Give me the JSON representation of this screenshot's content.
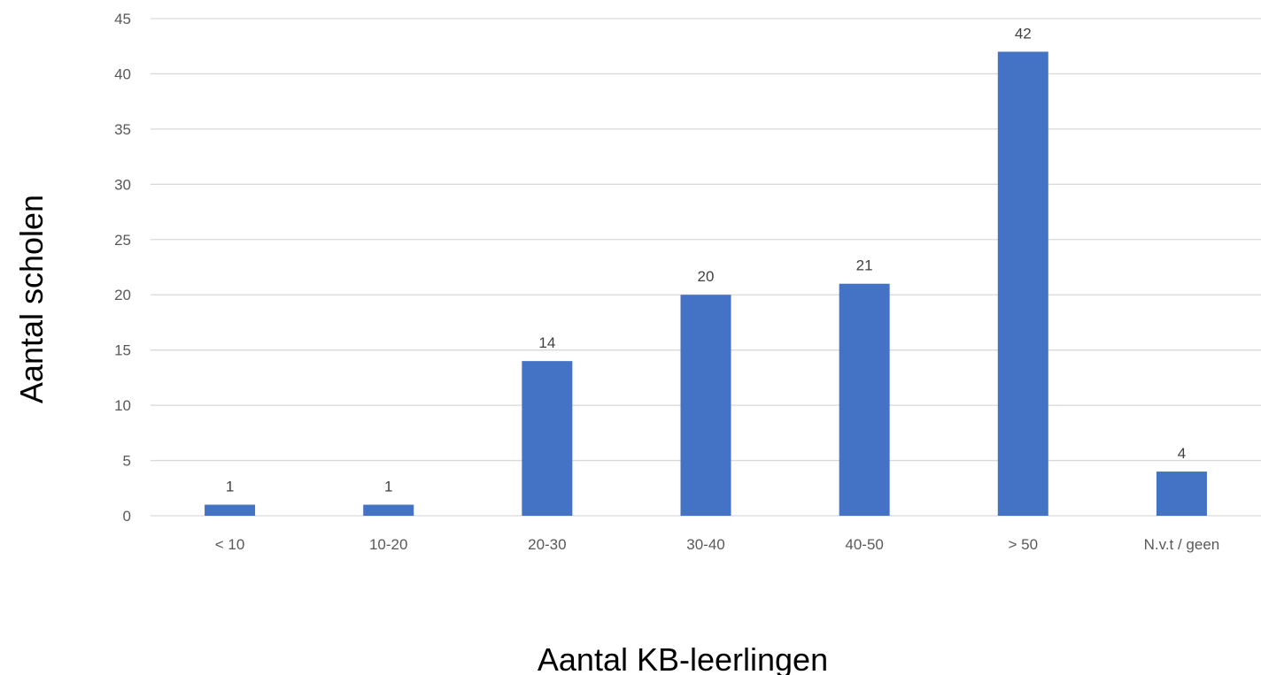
{
  "chart_data": {
    "type": "bar",
    "categories": [
      "< 10",
      "10-20",
      "20-30",
      "30-40",
      "40-50",
      "> 50",
      "N.v.t / geen"
    ],
    "values": [
      1,
      1,
      14,
      20,
      21,
      42,
      4
    ],
    "data_labels": [
      "1",
      "1",
      "14",
      "20",
      "21",
      "42",
      "4"
    ],
    "xlabel": "Aantal KB-leerlingen",
    "ylabel": "Aantal scholen",
    "ylim": [
      0,
      45
    ],
    "yticks": [
      0,
      5,
      10,
      15,
      20,
      25,
      30,
      35,
      40,
      45
    ],
    "grid": true,
    "legend": "none",
    "colors": {
      "bar": "#4472C4",
      "grid": "#D9D9D9",
      "tick_text": "#595959",
      "label_text": "#404040"
    }
  }
}
